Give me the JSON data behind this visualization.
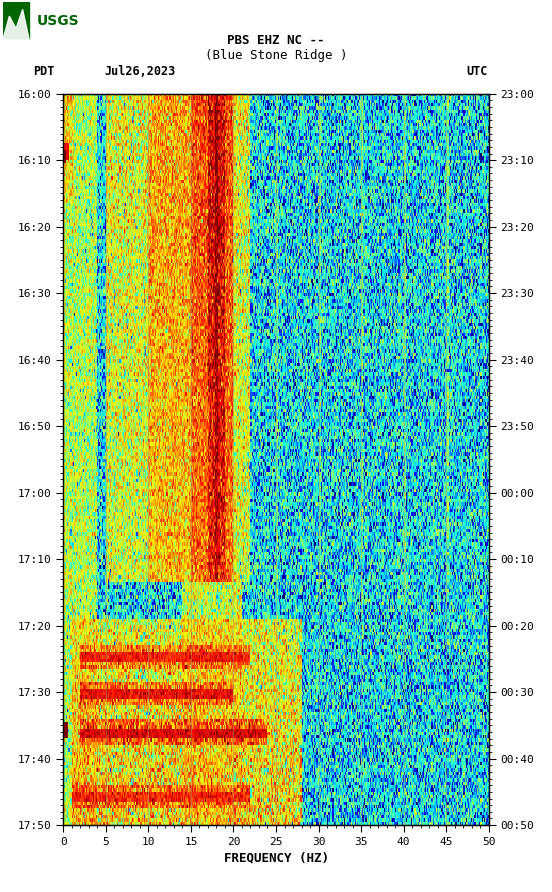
{
  "title_line1": "PBS EHZ NC --",
  "title_line2": "(Blue Stone Ridge )",
  "left_label": "PDT",
  "date_label": "Jul26,2023",
  "right_label": "UTC",
  "ylabel_left": [
    "16:00",
    "16:10",
    "16:20",
    "16:30",
    "16:40",
    "16:50",
    "17:00",
    "17:10",
    "17:20",
    "17:30",
    "17:40",
    "17:50"
  ],
  "ylabel_right": [
    "23:00",
    "23:10",
    "23:20",
    "23:30",
    "23:40",
    "23:50",
    "00:00",
    "00:10",
    "00:20",
    "00:30",
    "00:40",
    "00:50"
  ],
  "xlabel": "FREQUENCY (HZ)",
  "xmin": 0,
  "xmax": 50,
  "xticks": [
    0,
    5,
    10,
    15,
    20,
    25,
    30,
    35,
    40,
    45,
    50
  ],
  "freq_grid_lines": [
    5,
    10,
    15,
    20,
    25,
    30,
    35,
    40,
    45
  ],
  "fig_bgcolor": "#ffffff",
  "n_time": 220,
  "n_freq": 400,
  "seed": 1234
}
